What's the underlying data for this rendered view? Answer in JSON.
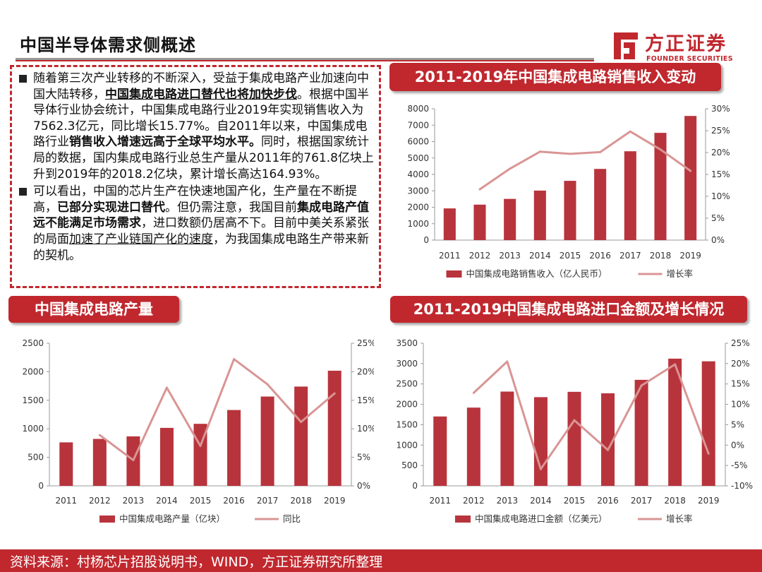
{
  "header": {
    "title": "中国半导体需求侧概述",
    "logo_cn": "方正证券",
    "logo_en": "FOUNDER SECURITIES"
  },
  "summary": {
    "p1": {
      "t1": "随着第三次产业转移的不断深入，受益于集成电路产业加速向中国大陆转移，",
      "b1": "中国集成电路进口替代也将加快步伐",
      "t2": "。根据中国半导体行业协会统计，中国集成电路行业2019年实现销售收入为7562.3亿元，同比增长15.77%。自2011年以来，中国集成电路行业",
      "b2": "销售收入增速远高于全球平均水平。",
      "t3": "同时，根据国家统计局的数据，国内集成电路行业总生产量从2011年的761.8亿块上升到2019年的2018.2亿块，累计增长高达164.93%。"
    },
    "p2": {
      "t1": "可以看出，中国的芯片生产在快速地国产化，生产量在不断提高，",
      "b1": "已部分实现进口替代",
      "t2": "。但仍需注意，我国目前",
      "b2": "集成电路产值远不能满足市场需求",
      "t3": "，进口数额仍居高不下。目前中美关系紧张的局面",
      "u1": "加速了产业链国产化的速度",
      "t4": "，为我国集成电路生产带来新的契机。"
    }
  },
  "sections": {
    "sales": "2011-2019年中国集成电路销售收入变动",
    "output": "中国集成电路产量",
    "import": "2011-2019中国集成电路进口金额及增长情况"
  },
  "chart_data": [
    {
      "type": "bar",
      "title": "2011-2019年中国集成电路销售收入变动",
      "categories": [
        "2011",
        "2012",
        "2013",
        "2014",
        "2015",
        "2016",
        "2017",
        "2018",
        "2019"
      ],
      "series": [
        {
          "name": "中国集成电路销售收入（亿人民币）",
          "type": "bar",
          "axis": "left",
          "color": "#b8343c",
          "values": [
            1930,
            2160,
            2510,
            3015,
            3610,
            4336,
            5411,
            6532,
            7562
          ]
        },
        {
          "name": "增长率",
          "type": "line",
          "axis": "right",
          "color": "#d99594",
          "values": [
            null,
            11.6,
            16.3,
            20.2,
            19.7,
            20.1,
            24.8,
            20.7,
            15.8
          ]
        }
      ],
      "ylim_left": [
        0,
        8000
      ],
      "yticks_left": [
        "0",
        "1000",
        "2000",
        "3000",
        "4000",
        "5000",
        "6000",
        "7000",
        "8000"
      ],
      "ylim_right": [
        0,
        30
      ],
      "yticks_right": [
        "0%",
        "5%",
        "10%",
        "15%",
        "20%",
        "25%",
        "30%"
      ],
      "legend": "bottom"
    },
    {
      "type": "bar",
      "title": "中国集成电路产量",
      "categories": [
        "2011",
        "2012",
        "2013",
        "2014",
        "2015",
        "2016",
        "2017",
        "2018",
        "2019"
      ],
      "series": [
        {
          "name": "中国集成电路产量（亿块）",
          "type": "bar",
          "axis": "left",
          "color": "#b8343c",
          "values": [
            762,
            823,
            867,
            1016,
            1087,
            1329,
            1565,
            1740,
            2018
          ]
        },
        {
          "name": "同比",
          "type": "line",
          "axis": "right",
          "color": "#d99594",
          "values": [
            null,
            8.9,
            4.5,
            17.2,
            7.0,
            22.2,
            17.8,
            11.2,
            16.2
          ]
        }
      ],
      "ylim_left": [
        0,
        2500
      ],
      "yticks_left": [
        "0",
        "500",
        "1000",
        "1500",
        "2000",
        "2500"
      ],
      "ylim_right": [
        0,
        25
      ],
      "yticks_right": [
        "0%",
        "5%",
        "10%",
        "15%",
        "20%",
        "25%"
      ],
      "legend": "bottom"
    },
    {
      "type": "bar",
      "title": "2011-2019中国集成电路进口金额及增长情况",
      "categories": [
        "2011",
        "2012",
        "2013",
        "2014",
        "2015",
        "2016",
        "2017",
        "2018",
        "2019"
      ],
      "series": [
        {
          "name": "中国集成电路进口金额（亿美元）",
          "type": "bar",
          "axis": "left",
          "color": "#b8343c",
          "values": [
            1702,
            1920,
            2313,
            2176,
            2307,
            2271,
            2601,
            3121,
            3056
          ]
        },
        {
          "name": "增长率",
          "type": "line",
          "axis": "right",
          "color": "#d99594",
          "values": [
            null,
            12.8,
            20.5,
            -5.9,
            6.1,
            -1.2,
            14.6,
            19.8,
            -2.1
          ]
        }
      ],
      "ylim_left": [
        0,
        3500
      ],
      "yticks_left": [
        "0",
        "500",
        "1000",
        "1500",
        "2000",
        "2500",
        "3000",
        "3500"
      ],
      "ylim_right": [
        -10,
        25
      ],
      "yticks_right": [
        "-10%",
        "-5%",
        "0%",
        "5%",
        "10%",
        "15%",
        "20%",
        "25%"
      ],
      "legend": "bottom"
    }
  ],
  "footer": {
    "source": "资料来源：村杨芯片招股说明书，WIND，方正证券研究所整理"
  }
}
